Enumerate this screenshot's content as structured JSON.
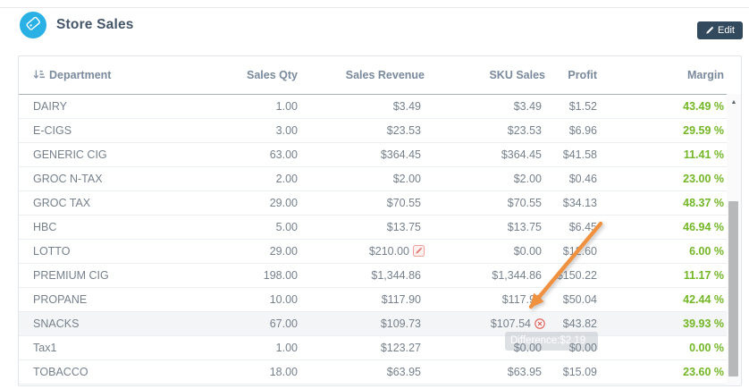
{
  "page": {
    "title": "Store Sales",
    "edit_button_label": "Edit"
  },
  "table": {
    "columns": [
      "Department",
      "Sales Qty",
      "Sales Revenue",
      "SKU Sales",
      "Profit",
      "Margin"
    ],
    "rows": [
      {
        "department": "DAIRY",
        "sales_qty": "1.00",
        "sales_revenue": "$3.49",
        "sku_sales": "$3.49",
        "profit": "$1.52",
        "margin": "43.49 %"
      },
      {
        "department": "E-CIGS",
        "sales_qty": "3.00",
        "sales_revenue": "$23.53",
        "sku_sales": "$23.53",
        "profit": "$6.96",
        "margin": "29.59 %"
      },
      {
        "department": "GENERIC CIG",
        "sales_qty": "63.00",
        "sales_revenue": "$364.45",
        "sku_sales": "$364.45",
        "profit": "$41.58",
        "margin": "11.41 %"
      },
      {
        "department": "GROC N-TAX",
        "sales_qty": "2.00",
        "sales_revenue": "$2.00",
        "sku_sales": "$2.00",
        "profit": "$0.46",
        "margin": "23.00 %"
      },
      {
        "department": "GROC TAX",
        "sales_qty": "29.00",
        "sales_revenue": "$70.55",
        "sku_sales": "$70.55",
        "profit": "$34.13",
        "margin": "48.37 %"
      },
      {
        "department": "HBC",
        "sales_qty": "5.00",
        "sales_revenue": "$13.75",
        "sku_sales": "$13.75",
        "profit": "$6.45",
        "margin": "46.94 %"
      },
      {
        "department": "LOTTO",
        "sales_qty": "29.00",
        "sales_revenue": "$210.00",
        "sales_revenue_icon": "edit-pencil-icon",
        "sku_sales": "$0.00",
        "profit": "$12.60",
        "margin": "6.00 %"
      },
      {
        "department": "PREMIUM CIG",
        "sales_qty": "198.00",
        "sales_revenue": "$1,344.86",
        "sku_sales": "$1,344.86",
        "profit": "$150.22",
        "margin": "11.17 %"
      },
      {
        "department": "PROPANE",
        "sales_qty": "10.00",
        "sales_revenue": "$117.90",
        "sku_sales": "$117.90",
        "profit": "$50.04",
        "margin": "42.44 %"
      },
      {
        "department": "SNACKS",
        "sales_qty": "67.00",
        "sales_revenue": "$109.73",
        "sku_sales": "$107.54",
        "sku_sales_icon": "error-circle-x-icon",
        "profit": "$43.82",
        "margin": "39.93 %",
        "highlighted": true
      },
      {
        "department": "Tax1",
        "sales_qty": "1.00",
        "sales_revenue": "$123.27",
        "sku_sales": "$0.00",
        "profit": "$0.00",
        "margin": "0.00 %"
      },
      {
        "department": "TOBACCO",
        "sales_qty": "18.00",
        "sales_revenue": "$63.95",
        "sku_sales": "$63.95",
        "profit": "$15.09",
        "margin": "23.60 %"
      }
    ]
  },
  "annotations": {
    "tooltip_text": "Difference:$2.19",
    "arrow_target": "SNACKS SKU Sales error icon"
  },
  "scrollbar": {
    "up_arrow_glyph": "▲"
  },
  "icons": {
    "logo": "price-tag-icon",
    "edit_button": "pencil-icon",
    "department_header": "sort-amount-icon",
    "lotto_revenue": "edit-pencil-icon",
    "snacks_sku": "error-circle-x-icon"
  },
  "colors": {
    "accent_blue": "#29b1e6",
    "button_navy": "#33495d",
    "margin_green": "#73b626",
    "arrow_orange": "#f0913f",
    "error_red": "#e05a55",
    "title_text": "#45566a",
    "cell_text": "#76818c",
    "header_text": "#7a8a9c"
  }
}
